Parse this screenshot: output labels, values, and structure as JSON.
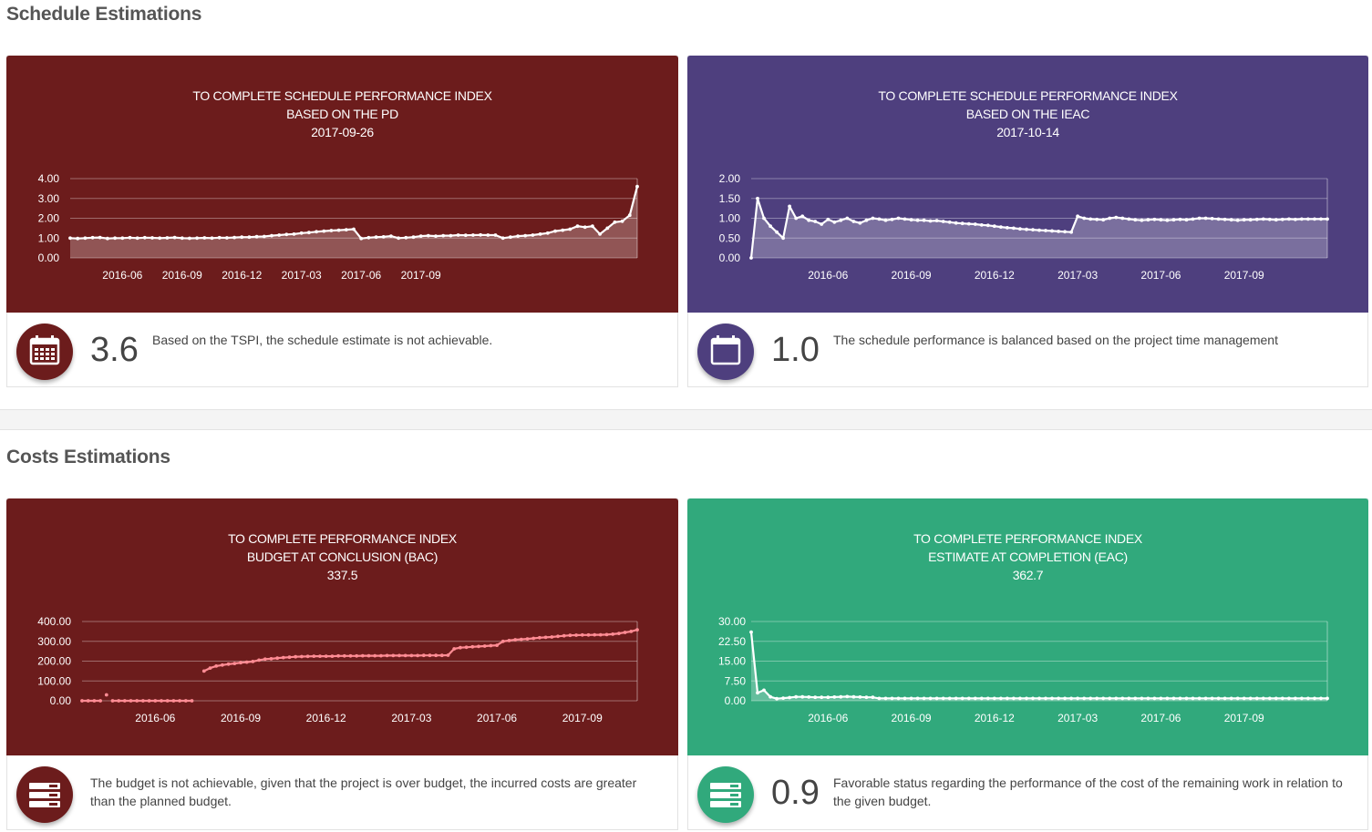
{
  "sections": [
    {
      "title": "Schedule Estimations"
    },
    {
      "title": "Costs Estimations"
    }
  ],
  "cards": [
    {
      "id": "tspi-pd",
      "colors": {
        "background": "#6c1c1c",
        "icon_bg": "#6c1c1c",
        "point": "#ffffff",
        "line": "#ffffff",
        "fill": "rgba(255,255,255,0.25)"
      },
      "title_lines": [
        "TO COMPLETE SCHEDULE PERFORMANCE INDEX",
        "BASED ON THE PD",
        "2017-09-26"
      ],
      "value": "3.6",
      "description": "Based on the TSPI, the schedule estimate is not achievable.",
      "icon": "calendar-grid-icon",
      "chart_data": {
        "type": "area",
        "y_ticks": [
          "0.00",
          "1.00",
          "2.00",
          "3.00",
          "4.00"
        ],
        "ylim": [
          0,
          4
        ],
        "x_ticks": [
          "2016-06",
          "2016-09",
          "2016-12",
          "2017-03",
          "2017-06",
          "2017-09"
        ],
        "x_tick_index": [
          7,
          15,
          23,
          31,
          39,
          47
        ],
        "values": [
          1.0,
          0.98,
          1.0,
          1.02,
          1.03,
          0.98,
          1.0,
          1.0,
          1.02,
          1.0,
          1.02,
          1.01,
          1.0,
          1.01,
          1.03,
          1.0,
          0.99,
          1.0,
          1.01,
          1.0,
          1.02,
          1.01,
          1.03,
          1.05,
          1.05,
          1.07,
          1.08,
          1.12,
          1.15,
          1.18,
          1.2,
          1.25,
          1.28,
          1.32,
          1.35,
          1.38,
          1.4,
          1.42,
          1.45,
          0.98,
          1.02,
          1.05,
          1.06,
          1.1,
          1.0,
          1.02,
          1.05,
          1.1,
          1.12,
          1.1,
          1.12,
          1.12,
          1.15,
          1.14,
          1.15,
          1.16,
          1.15,
          1.15,
          1.0,
          1.05,
          1.1,
          1.12,
          1.15,
          1.2,
          1.25,
          1.35,
          1.4,
          1.45,
          1.6,
          1.55,
          1.6,
          1.2,
          1.5,
          1.8,
          1.85,
          2.15,
          3.6
        ]
      }
    },
    {
      "id": "tspi-ieac",
      "colors": {
        "background": "#4e3f7e",
        "icon_bg": "#4e3f7e",
        "point": "#ffffff",
        "line": "#ffffff",
        "fill": "rgba(255,255,255,0.25)"
      },
      "title_lines": [
        "TO COMPLETE SCHEDULE PERFORMANCE INDEX",
        "BASED ON THE IEAC",
        "2017-10-14"
      ],
      "value": "1.0",
      "description": "The schedule performance is balanced based on the project time management",
      "icon": "calendar-icon",
      "chart_data": {
        "type": "area",
        "y_ticks": [
          "0.00",
          "0.50",
          "1.00",
          "1.50",
          "2.00"
        ],
        "ylim": [
          0,
          2
        ],
        "x_ticks": [
          "2016-06",
          "2016-09",
          "2016-12",
          "2017-03",
          "2017-06",
          "2017-09"
        ],
        "x_tick_index": [
          12,
          25,
          38,
          51,
          64,
          77
        ],
        "values": [
          0.0,
          1.5,
          1.0,
          0.8,
          0.65,
          0.5,
          1.3,
          1.0,
          1.05,
          0.95,
          0.92,
          0.85,
          0.97,
          0.9,
          0.95,
          1.0,
          0.92,
          0.88,
          0.95,
          1.0,
          0.98,
          0.95,
          0.97,
          1.0,
          0.98,
          0.96,
          0.95,
          0.95,
          0.93,
          0.94,
          0.92,
          0.9,
          0.88,
          0.87,
          0.86,
          0.85,
          0.83,
          0.82,
          0.8,
          0.78,
          0.76,
          0.75,
          0.73,
          0.72,
          0.71,
          0.7,
          0.69,
          0.68,
          0.67,
          0.66,
          0.65,
          1.05,
          1.0,
          0.98,
          0.97,
          0.96,
          1.0,
          1.02,
          1.0,
          0.98,
          0.96,
          0.95,
          0.96,
          0.97,
          0.96,
          0.95,
          0.96,
          0.97,
          0.96,
          0.98,
          1.0,
          1.0,
          0.99,
          0.98,
          0.97,
          0.96,
          0.95,
          0.96,
          0.96,
          0.97,
          0.98,
          0.97,
          0.96,
          0.97,
          0.98,
          0.97,
          0.98,
          0.98,
          0.98,
          0.98,
          0.98
        ]
      }
    },
    {
      "id": "tcpi-bac",
      "colors": {
        "background": "#6c1c1c",
        "icon_bg": "#6c1c1c",
        "point": "#ff8c94",
        "line": "#ff8c94",
        "fill": "none"
      },
      "title_lines": [
        "TO COMPLETE PERFORMANCE INDEX",
        "BUDGET AT CONCLUSION (BAC)",
        "337.5"
      ],
      "value": "",
      "description": "The budget is not achievable, given that the project is over budget, the incurred costs are greater than the planned budget.",
      "icon": "server-stack-icon",
      "chart_data": {
        "type": "line",
        "y_ticks": [
          "0.00",
          "100.00",
          "200.00",
          "300.00",
          "400.00"
        ],
        "ylim": [
          0,
          400
        ],
        "x_ticks": [
          "2016-06",
          "2016-09",
          "2016-12",
          "2017-03",
          "2017-06",
          "2017-09"
        ],
        "x_tick_index": [
          12,
          26,
          40,
          54,
          68,
          82
        ],
        "segments": [
          {
            "start": 0,
            "values": [
              0,
              0,
              0,
              0
            ]
          },
          {
            "start": 4,
            "values": [
              30
            ]
          },
          {
            "start": 5,
            "values": [
              0,
              0,
              0,
              0,
              0,
              0,
              0,
              0,
              0,
              0,
              0,
              0,
              0,
              0
            ]
          },
          {
            "start": 20,
            "values": [
              150,
              165,
              175,
              180,
              185,
              188,
              192,
              195,
              198,
              205,
              210,
              212,
              215,
              218,
              220,
              222,
              223,
              224,
              225,
              225,
              225,
              225,
              226,
              226,
              226,
              226,
              227,
              227,
              227,
              227,
              228,
              228,
              228,
              228,
              228,
              228,
              229,
              229,
              229,
              229,
              230,
              262,
              268,
              270,
              272,
              274,
              276,
              278,
              280,
              300,
              304,
              308,
              310,
              312,
              315,
              318,
              320,
              322,
              325,
              328,
              330,
              331,
              332,
              332,
              333,
              333,
              334,
              336,
              340,
              345,
              350,
              358
            ]
          }
        ]
      }
    },
    {
      "id": "tcpi-eac",
      "colors": {
        "background": "#31a97c",
        "icon_bg": "#31a97c",
        "point": "#ffffff",
        "line": "#ffffff",
        "fill": "rgba(255,255,255,0.25)"
      },
      "title_lines": [
        "TO COMPLETE PERFORMANCE INDEX",
        "ESTIMATE AT COMPLETION (EAC)",
        "362.7"
      ],
      "value": "0.9",
      "description": "Favorable status regarding the performance of the cost of the remaining work in relation to the given budget.",
      "icon": "server-stack-icon",
      "chart_data": {
        "type": "area",
        "y_ticks": [
          "0.00",
          "7.50",
          "15.00",
          "22.50",
          "30.00"
        ],
        "ylim": [
          0,
          30
        ],
        "x_ticks": [
          "2016-06",
          "2016-09",
          "2016-12",
          "2017-03",
          "2017-06",
          "2017-09"
        ],
        "x_tick_index": [
          12,
          25,
          38,
          51,
          64,
          77
        ],
        "values": [
          26,
          3,
          4,
          1.5,
          0.8,
          1.0,
          1.2,
          1.5,
          1.5,
          1.4,
          1.3,
          1.3,
          1.3,
          1.4,
          1.5,
          1.6,
          1.5,
          1.4,
          1.3,
          1.3,
          0.9,
          0.9,
          0.9,
          0.9,
          0.9,
          0.9,
          0.9,
          0.9,
          0.9,
          0.9,
          0.9,
          0.9,
          0.9,
          0.9,
          0.9,
          0.9,
          0.9,
          0.9,
          0.9,
          0.9,
          0.9,
          0.9,
          0.9,
          0.9,
          0.9,
          0.9,
          0.9,
          0.9,
          0.9,
          0.9,
          0.9,
          0.9,
          0.9,
          0.9,
          0.9,
          0.9,
          0.9,
          0.9,
          0.9,
          0.9,
          0.9,
          0.9,
          0.9,
          0.9,
          0.9,
          0.9,
          0.9,
          0.9,
          0.9,
          0.9,
          0.9,
          0.9,
          0.9,
          0.9,
          0.9,
          0.9,
          0.9,
          0.9,
          0.9,
          0.9,
          0.9,
          0.9,
          0.9,
          0.9,
          0.9,
          0.9,
          0.9,
          0.9,
          0.9,
          0.9,
          0.9
        ]
      }
    }
  ]
}
